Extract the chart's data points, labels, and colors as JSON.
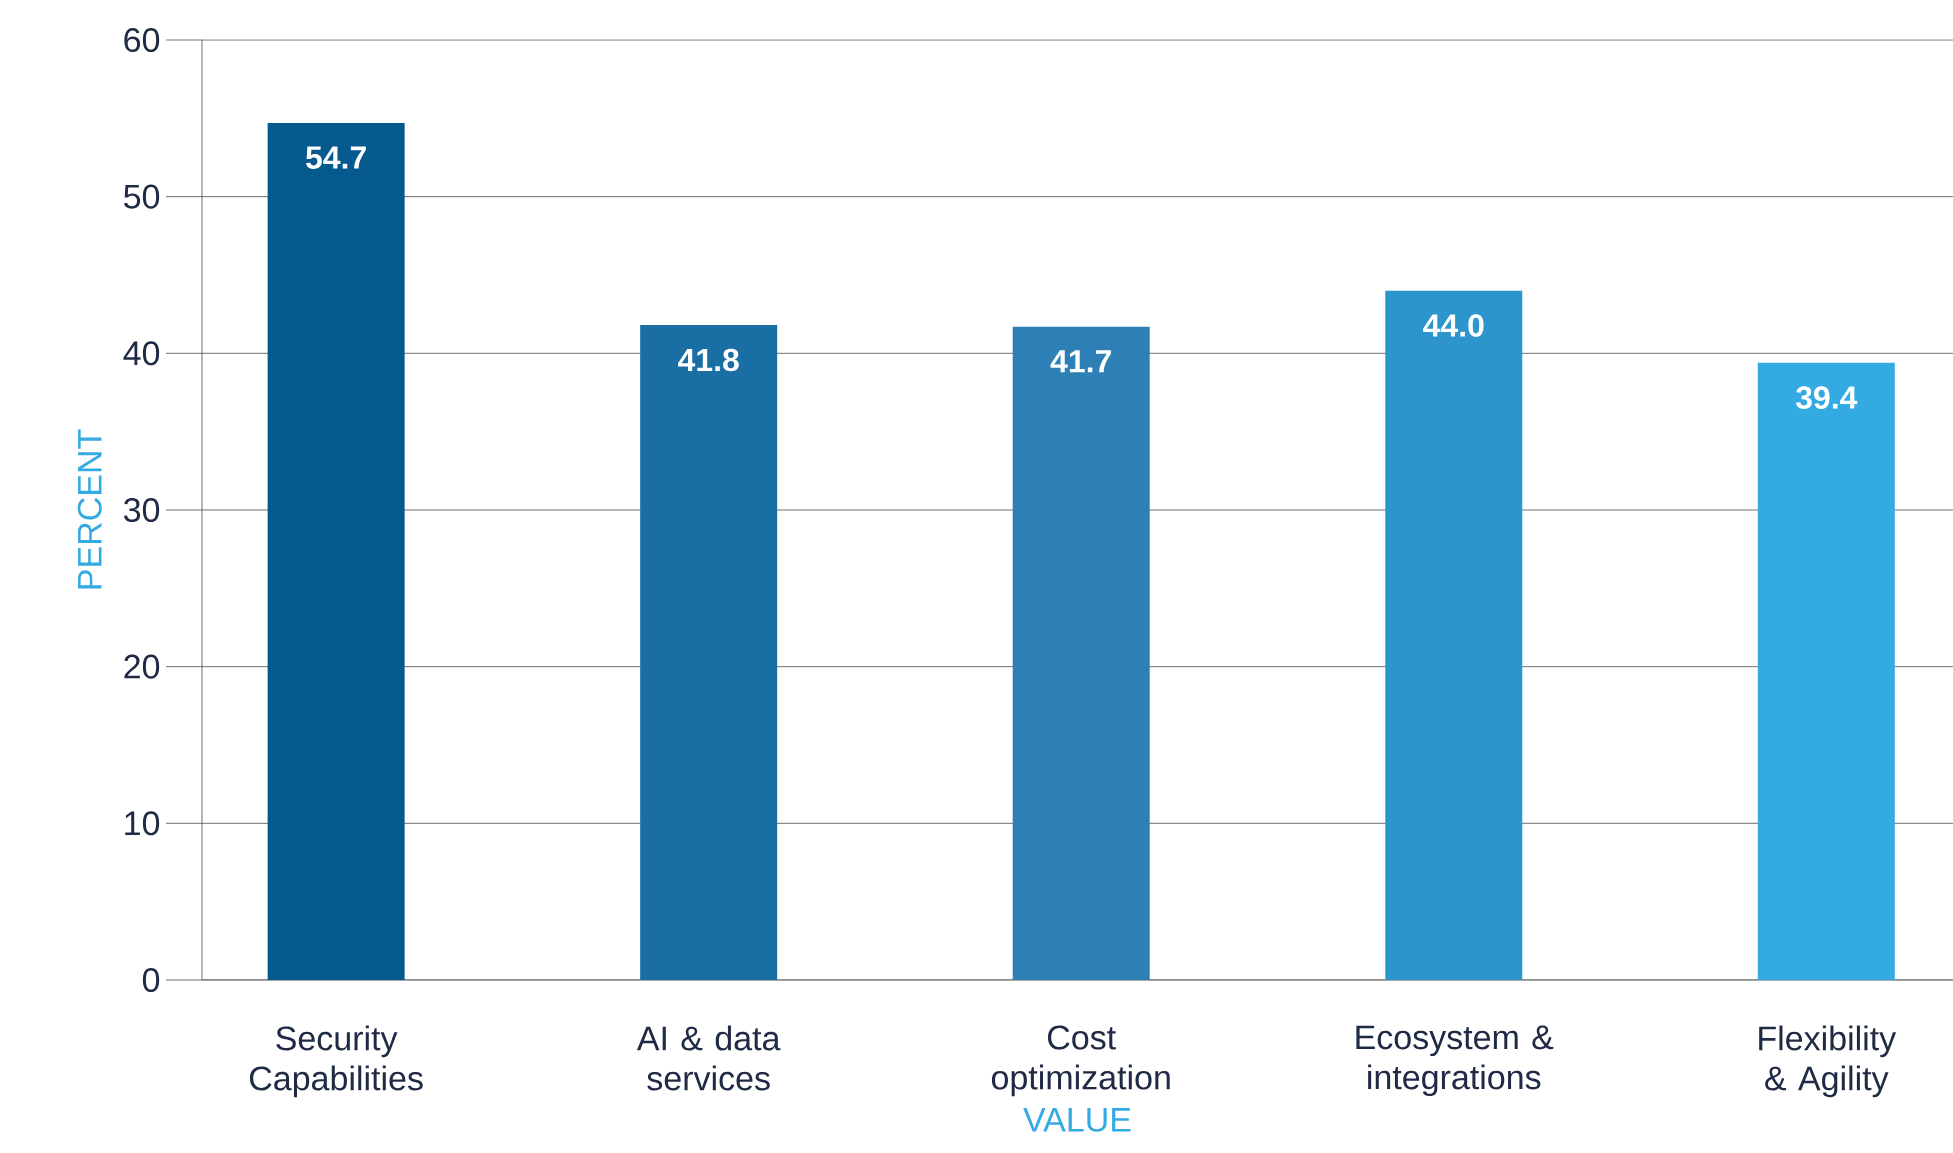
{
  "chart_data": {
    "type": "bar",
    "xlabel": "VALUE",
    "ylabel": "PERCENT",
    "categories": [
      "Security Capabilities",
      "AI & data services",
      "Cost optimization",
      "Ecosystem & integrations",
      "Flexibility & Agility"
    ],
    "values": [
      54.7,
      41.8,
      41.7,
      44.0,
      39.4
    ],
    "value_labels": [
      "54.7",
      "41.8",
      "41.7",
      "44.0",
      "39.4"
    ],
    "colors": [
      "#045a8d",
      "#196fa4",
      "#2c80b6",
      "#2c95cc",
      "#34aae2"
    ],
    "ylim": [
      0,
      60
    ],
    "yticks": [
      0,
      10,
      20,
      30,
      40,
      50,
      60
    ],
    "grid": "y"
  }
}
